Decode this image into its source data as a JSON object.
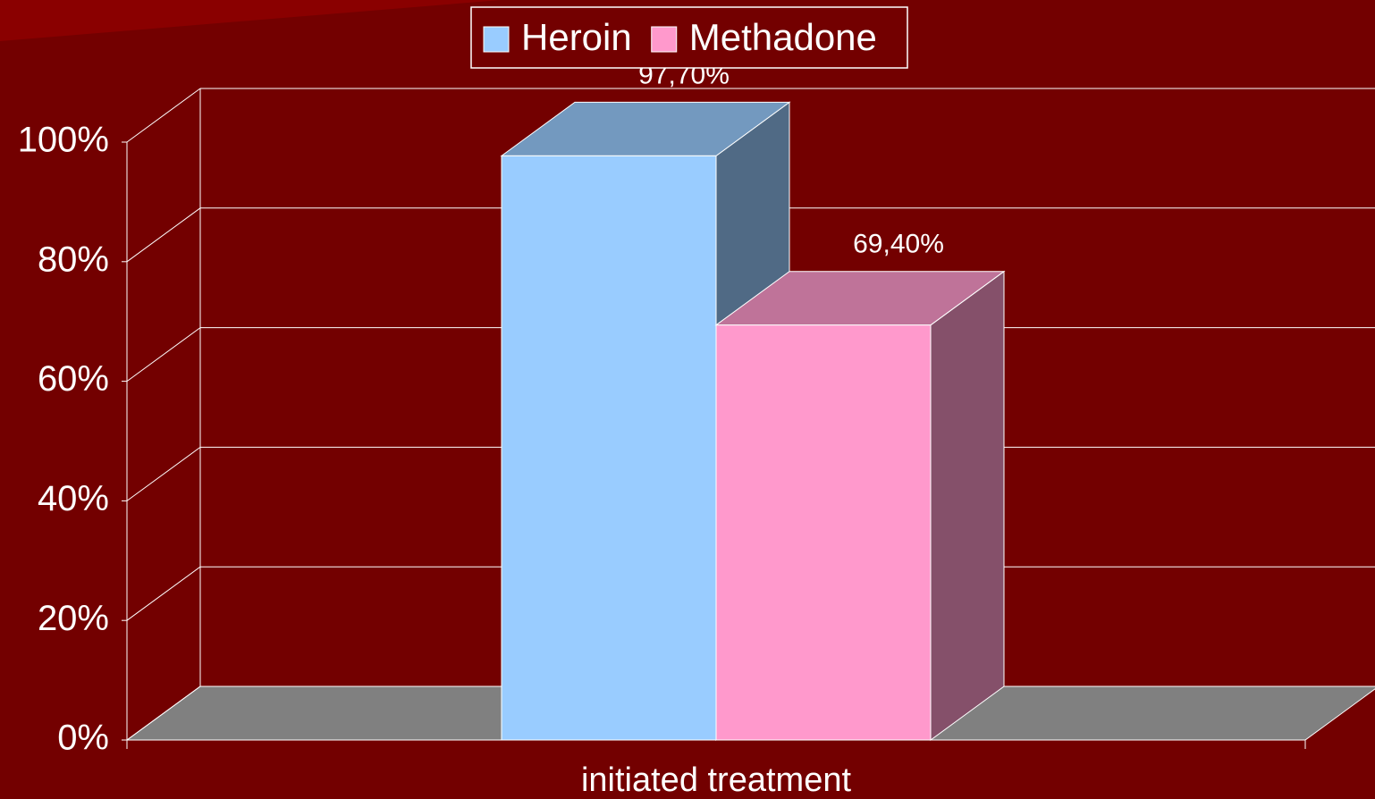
{
  "chart_data": {
    "type": "bar3d",
    "categories": [
      "initiated treatment"
    ],
    "series": [
      {
        "name": "Heroin",
        "color": "#99ccff",
        "values": [
          97.7
        ],
        "value_labels": [
          "97,70%"
        ]
      },
      {
        "name": "Methadone",
        "color": "#ff99cc",
        "values": [
          69.4
        ],
        "value_labels": [
          "69,40%"
        ]
      }
    ],
    "ylim": [
      0,
      100
    ],
    "yticks": [
      {
        "value": 0,
        "label": "0%"
      },
      {
        "value": 20,
        "label": "20%"
      },
      {
        "value": 40,
        "label": "40%"
      },
      {
        "value": 60,
        "label": "60%"
      },
      {
        "value": 80,
        "label": "80%"
      },
      {
        "value": 100,
        "label": "100%"
      }
    ],
    "grid": true,
    "legend": "top"
  }
}
